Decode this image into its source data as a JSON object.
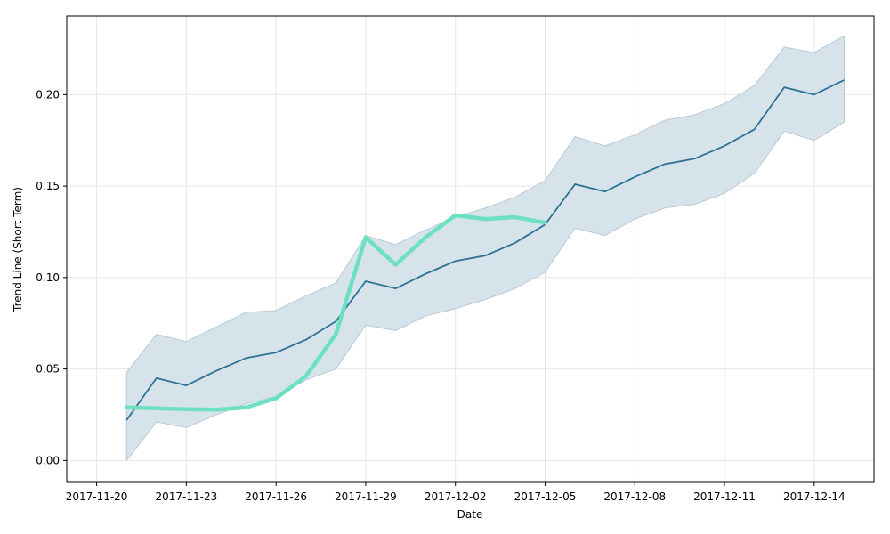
{
  "chart_data": {
    "type": "line",
    "xlabel": "Date",
    "ylabel": "Trend Line (Short Term)",
    "x_tick_labels": [
      "2017-11-20",
      "2017-11-23",
      "2017-11-26",
      "2017-11-29",
      "2017-12-02",
      "2017-12-05",
      "2017-12-08",
      "2017-12-11",
      "2017-12-14"
    ],
    "y_tick_labels": [
      "0.00",
      "0.05",
      "0.10",
      "0.15",
      "0.20"
    ],
    "y_ticks": [
      0.0,
      0.05,
      0.1,
      0.15,
      0.2
    ],
    "ylim": [
      -0.012,
      0.243
    ],
    "xlim": [
      "2017-11-19",
      "2017-12-16"
    ],
    "grid": true,
    "colors": {
      "trend_line": "#2c7294",
      "band_fill": "#d7e3ea",
      "band_edge": "#b8cbd6",
      "highlight_line": "#6ee0c2",
      "grid": "#e6e6e6"
    },
    "series": [
      {
        "x": [
          "2017-11-21",
          "2017-11-22",
          "2017-11-23",
          "2017-11-24",
          "2017-11-25",
          "2017-11-26",
          "2017-11-27",
          "2017-11-28",
          "2017-11-29",
          "2017-11-30",
          "2017-12-01",
          "2017-12-02",
          "2017-12-03",
          "2017-12-04",
          "2017-12-05",
          "2017-12-06",
          "2017-12-07",
          "2017-12-08",
          "2017-12-09",
          "2017-12-10",
          "2017-12-11",
          "2017-12-12",
          "2017-12-13",
          "2017-12-14",
          "2017-12-15"
        ],
        "values": [
          0.022,
          0.045,
          0.041,
          0.049,
          0.056,
          0.059,
          0.066,
          0.076,
          0.098,
          0.094,
          0.102,
          0.109,
          0.112,
          0.119,
          0.129,
          0.151,
          0.147,
          0.155,
          0.162,
          0.165,
          0.172,
          0.181,
          0.204,
          0.2,
          0.208
        ],
        "lower": [
          0.0,
          0.021,
          0.018,
          0.025,
          0.031,
          0.035,
          0.044,
          0.05,
          0.074,
          0.071,
          0.079,
          0.083,
          0.088,
          0.094,
          0.103,
          0.127,
          0.123,
          0.132,
          0.138,
          0.14,
          0.146,
          0.157,
          0.18,
          0.175,
          0.185
        ],
        "upper": [
          0.048,
          0.069,
          0.065,
          0.073,
          0.081,
          0.082,
          0.09,
          0.097,
          0.123,
          0.118,
          0.126,
          0.133,
          0.138,
          0.144,
          0.153,
          0.177,
          0.172,
          0.178,
          0.186,
          0.189,
          0.195,
          0.205,
          0.226,
          0.223,
          0.232
        ]
      },
      {
        "x": [
          "2017-11-21",
          "2017-11-22",
          "2017-11-23",
          "2017-11-24",
          "2017-11-25",
          "2017-11-26",
          "2017-11-27",
          "2017-11-28",
          "2017-11-29",
          "2017-11-30",
          "2017-12-01",
          "2017-12-02",
          "2017-12-03",
          "2017-12-04",
          "2017-12-05"
        ],
        "values": [
          0.029,
          0.0285,
          0.028,
          0.0278,
          0.029,
          0.034,
          0.046,
          0.069,
          0.122,
          0.107,
          0.122,
          0.134,
          0.132,
          0.133,
          0.13
        ]
      }
    ]
  }
}
